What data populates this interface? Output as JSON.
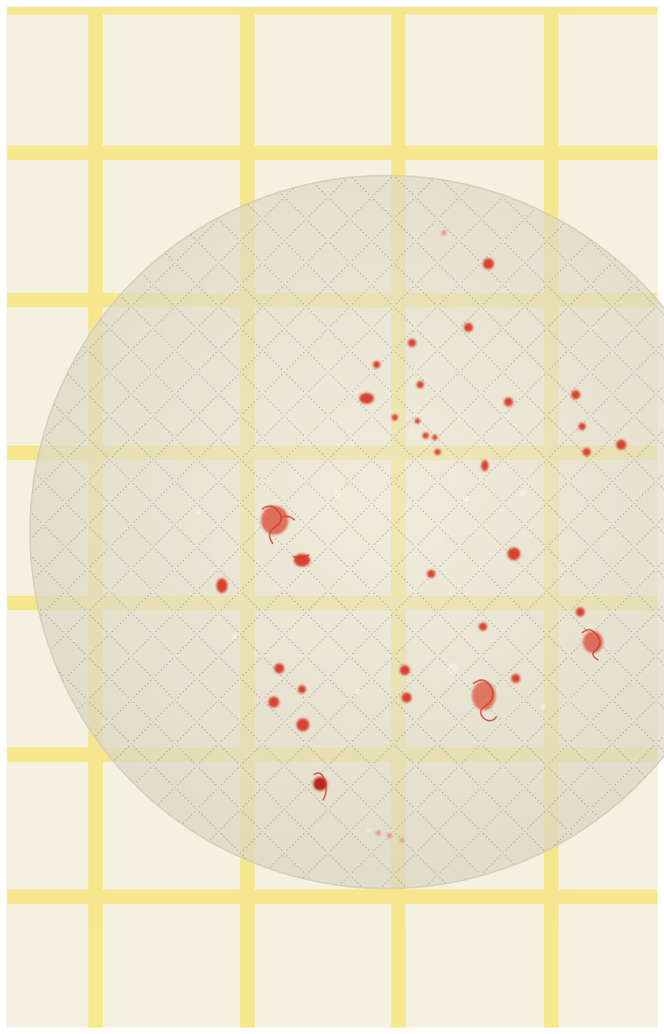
{
  "image": {
    "subject": "membrane-filter-on-yellow-grid",
    "colors": {
      "paper": "#f5f1e1",
      "grid_line": "#f7e789",
      "filter_disc": "#e6e0ce",
      "filter_grid_dots": "#5a5a5a",
      "colony": "#d8432f",
      "colony_dark": "#b8281e"
    },
    "colony_count_visible": 38
  }
}
